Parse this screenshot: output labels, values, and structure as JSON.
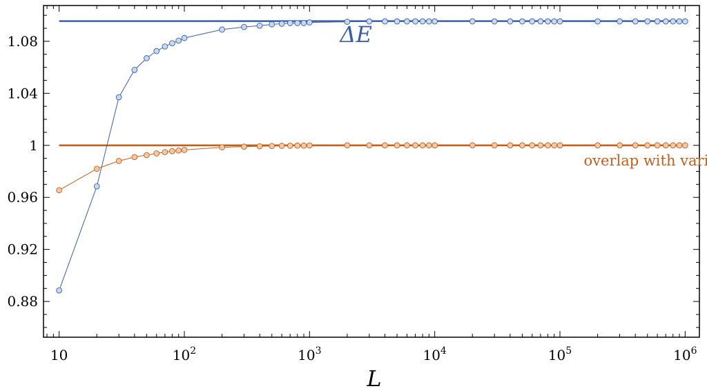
{
  "chart_data": {
    "type": "line",
    "xscale": "log",
    "xlim": [
      7.5,
      1300000
    ],
    "ylim": [
      0.8525,
      1.1075
    ],
    "xlabel": "L",
    "ylabel": "",
    "x_ticks": [
      {
        "value": 10,
        "base": "10",
        "exp": ""
      },
      {
        "value": 100,
        "base": "10",
        "exp": "2"
      },
      {
        "value": 1000,
        "base": "10",
        "exp": "3"
      },
      {
        "value": 10000,
        "base": "10",
        "exp": "4"
      },
      {
        "value": 100000,
        "base": "10",
        "exp": "5"
      },
      {
        "value": 1000000,
        "base": "10",
        "exp": "6"
      }
    ],
    "y_ticks": [
      {
        "value": 0.88,
        "label": "0.88"
      },
      {
        "value": 0.92,
        "label": "0.92"
      },
      {
        "value": 0.96,
        "label": "0.96"
      },
      {
        "value": 1.0,
        "label": "1"
      },
      {
        "value": 1.04,
        "label": "1.04"
      },
      {
        "value": 1.08,
        "label": "1.08"
      }
    ],
    "reference_lines": [
      {
        "name": "ΔE",
        "y": 1.0955,
        "color": "#3a5fa8"
      },
      {
        "name": "overlap with variational Gaussian ansatz",
        "y": 1.0,
        "color": "#c0601d"
      }
    ],
    "series": [
      {
        "name": "ΔE",
        "color": "#3a5fa8",
        "fill": "#c9d9f2",
        "x": [
          10,
          20,
          30,
          40,
          50,
          60,
          70,
          80,
          90,
          100,
          200,
          300,
          400,
          500,
          600,
          700,
          800,
          900,
          1000,
          2000,
          3000,
          4000,
          5000,
          6000,
          7000,
          8000,
          9000,
          10000,
          20000,
          30000,
          40000,
          50000,
          60000,
          70000,
          80000,
          90000,
          100000,
          200000,
          300000,
          400000,
          500000,
          600000,
          700000,
          800000,
          900000,
          1000000
        ],
        "values": [
          0.8885,
          0.9685,
          1.037,
          1.058,
          1.067,
          1.0725,
          1.076,
          1.0785,
          1.0805,
          1.0825,
          1.089,
          1.091,
          1.092,
          1.093,
          1.0935,
          1.094,
          1.094,
          1.094,
          1.0945,
          1.095,
          1.0953,
          1.0953,
          1.0953,
          1.0953,
          1.0953,
          1.0953,
          1.0953,
          1.0953,
          1.0953,
          1.0953,
          1.0953,
          1.0953,
          1.0953,
          1.0953,
          1.0953,
          1.0953,
          1.0953,
          1.0953,
          1.0953,
          1.0953,
          1.0953,
          1.0953,
          1.0953,
          1.0953,
          1.0953,
          1.0953
        ]
      },
      {
        "name": "overlap with variational Gaussian ansatz",
        "color": "#c0601d",
        "fill": "#f6c9a6",
        "x": [
          10,
          20,
          30,
          40,
          50,
          60,
          70,
          80,
          90,
          100,
          200,
          300,
          400,
          500,
          600,
          700,
          800,
          900,
          1000,
          2000,
          3000,
          4000,
          5000,
          6000,
          7000,
          8000,
          9000,
          10000,
          20000,
          30000,
          40000,
          50000,
          60000,
          70000,
          80000,
          90000,
          100000,
          200000,
          300000,
          400000,
          500000,
          600000,
          700000,
          800000,
          900000,
          1000000
        ],
        "values": [
          0.9655,
          0.982,
          0.988,
          0.991,
          0.9925,
          0.9938,
          0.9948,
          0.9955,
          0.996,
          0.9965,
          0.9985,
          0.999,
          0.9993,
          0.9995,
          0.9996,
          0.9997,
          0.9998,
          0.9998,
          0.9999,
          1.0,
          1.0,
          1.0,
          1.0,
          1.0,
          1.0,
          1.0,
          1.0,
          1.0,
          1.0,
          1.0,
          1.0,
          1.0,
          1.0,
          1.0,
          1.0,
          1.0,
          1.0,
          1.0,
          1.0,
          1.0,
          1.0,
          1.0,
          1.0,
          1.0,
          1.0,
          1.0
        ]
      }
    ],
    "annotations": [
      {
        "id": "delta-e",
        "text": "ΔE",
        "x": 1750,
        "y": 1.0795,
        "color": "#3a5fa8",
        "size": 32,
        "italic": true
      },
      {
        "id": "overlap",
        "text": "overlap with variational Gaussian ansatz",
        "x": 155000,
        "y": 0.9845,
        "color": "#c0601d",
        "size": 21,
        "italic": false
      }
    ],
    "grid": false,
    "legend": "none"
  }
}
